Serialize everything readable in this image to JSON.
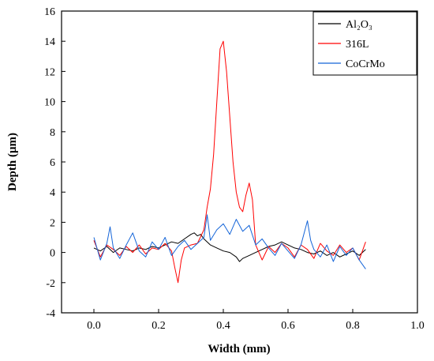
{
  "chart_data": {
    "type": "line",
    "xlabel": "Width (mm)",
    "ylabel": "Depth (μm)",
    "xlim": [
      -0.1,
      1.0
    ],
    "ylim": [
      -4,
      16
    ],
    "xticks": [
      "0.0",
      "0.2",
      "0.4",
      "0.6",
      "0.8",
      "1.0"
    ],
    "yticks": [
      "-4",
      "-2",
      "0",
      "2",
      "4",
      "6",
      "8",
      "10",
      "12",
      "14",
      "16"
    ],
    "grid": false,
    "legend_position": "top-right",
    "series": [
      {
        "name": "Al₂O₃",
        "color": "#000000",
        "x": [
          0.0,
          0.02,
          0.04,
          0.06,
          0.08,
          0.1,
          0.12,
          0.14,
          0.16,
          0.18,
          0.2,
          0.22,
          0.24,
          0.26,
          0.28,
          0.3,
          0.31,
          0.32,
          0.33,
          0.34,
          0.35,
          0.36,
          0.38,
          0.4,
          0.42,
          0.44,
          0.45,
          0.46,
          0.48,
          0.5,
          0.52,
          0.54,
          0.56,
          0.58,
          0.6,
          0.62,
          0.64,
          0.66,
          0.68,
          0.7,
          0.72,
          0.74,
          0.76,
          0.78,
          0.8,
          0.82,
          0.84
        ],
        "y": [
          0.3,
          0.1,
          0.4,
          0.0,
          0.3,
          0.2,
          0.1,
          0.3,
          0.2,
          0.4,
          0.3,
          0.5,
          0.7,
          0.6,
          0.9,
          1.2,
          1.3,
          1.1,
          1.2,
          0.9,
          0.7,
          0.5,
          0.3,
          0.1,
          0.0,
          -0.3,
          -0.6,
          -0.4,
          -0.2,
          0.0,
          0.2,
          0.4,
          0.5,
          0.7,
          0.5,
          0.3,
          0.2,
          0.0,
          -0.1,
          0.1,
          -0.2,
          0.0,
          -0.3,
          -0.1,
          0.1,
          -0.2,
          0.2
        ]
      },
      {
        "name": "316L",
        "color": "#ff0000",
        "x": [
          0.0,
          0.02,
          0.04,
          0.06,
          0.08,
          0.1,
          0.12,
          0.14,
          0.16,
          0.18,
          0.2,
          0.22,
          0.24,
          0.25,
          0.26,
          0.27,
          0.28,
          0.3,
          0.32,
          0.34,
          0.35,
          0.36,
          0.37,
          0.38,
          0.39,
          0.4,
          0.41,
          0.42,
          0.43,
          0.44,
          0.45,
          0.46,
          0.47,
          0.48,
          0.49,
          0.5,
          0.52,
          0.54,
          0.56,
          0.58,
          0.6,
          0.62,
          0.64,
          0.66,
          0.68,
          0.7,
          0.72,
          0.74,
          0.76,
          0.78,
          0.8,
          0.82,
          0.84
        ],
        "y": [
          0.8,
          -0.3,
          0.5,
          0.2,
          -0.2,
          0.4,
          0.0,
          0.5,
          -0.1,
          0.3,
          0.2,
          0.6,
          0.1,
          -1.0,
          -2.0,
          -0.5,
          0.3,
          0.5,
          0.6,
          1.5,
          3.0,
          4.2,
          6.5,
          10.0,
          13.5,
          14.0,
          12.0,
          9.0,
          6.0,
          4.0,
          3.0,
          2.7,
          3.8,
          4.6,
          3.5,
          0.5,
          -0.5,
          0.4,
          0.0,
          0.6,
          0.3,
          -0.3,
          0.5,
          0.2,
          -0.4,
          0.6,
          0.1,
          -0.2,
          0.5,
          0.0,
          0.3,
          -0.5,
          0.7
        ]
      },
      {
        "name": "CoCrMo",
        "color": "#1565d8",
        "x": [
          0.0,
          0.02,
          0.04,
          0.05,
          0.06,
          0.08,
          0.1,
          0.12,
          0.14,
          0.16,
          0.18,
          0.2,
          0.22,
          0.24,
          0.26,
          0.28,
          0.3,
          0.32,
          0.34,
          0.35,
          0.36,
          0.38,
          0.4,
          0.42,
          0.44,
          0.46,
          0.48,
          0.5,
          0.52,
          0.54,
          0.56,
          0.58,
          0.6,
          0.62,
          0.64,
          0.66,
          0.67,
          0.68,
          0.7,
          0.72,
          0.74,
          0.76,
          0.78,
          0.8,
          0.82,
          0.84
        ],
        "y": [
          1.0,
          -0.5,
          0.6,
          1.7,
          0.3,
          -0.4,
          0.5,
          1.3,
          0.1,
          -0.3,
          0.7,
          0.2,
          1.0,
          -0.2,
          0.4,
          0.8,
          0.2,
          0.6,
          1.0,
          2.5,
          0.8,
          1.5,
          1.9,
          1.2,
          2.2,
          1.4,
          1.8,
          0.5,
          0.9,
          0.3,
          -0.2,
          0.6,
          0.1,
          -0.4,
          0.5,
          2.1,
          0.8,
          0.2,
          -0.3,
          0.5,
          -0.6,
          0.4,
          -0.2,
          0.3,
          -0.5,
          -1.1
        ]
      }
    ]
  }
}
